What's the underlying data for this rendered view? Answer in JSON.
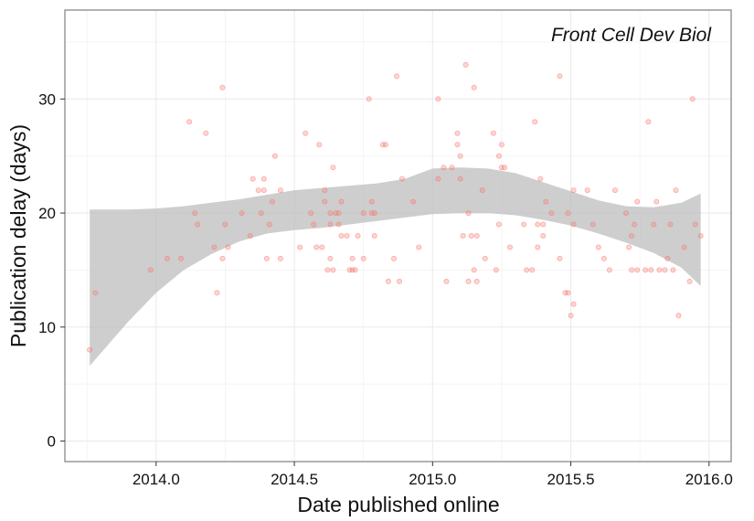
{
  "chart_data": {
    "type": "scatter",
    "title": "",
    "annotation": "Front Cell Dev Biol",
    "xlabel": "Date published online",
    "ylabel": "Publication delay (days)",
    "xlim": [
      2013.67,
      2016.08
    ],
    "ylim": [
      -1.8,
      37.8
    ],
    "x_ticks": [
      2014.0,
      2014.5,
      2015.0,
      2015.5,
      2016.0
    ],
    "x_tick_labels": [
      "2014.0",
      "2014.5",
      "2015.0",
      "2015.5",
      "2016.0"
    ],
    "y_ticks": [
      0,
      10,
      20,
      30
    ],
    "y_tick_labels": [
      "0",
      "10",
      "20",
      "30"
    ],
    "grid": true,
    "point_color": "#f8766d",
    "ribbon_color": "#bdbdbd",
    "points": [
      [
        2013.76,
        8
      ],
      [
        2013.78,
        13
      ],
      [
        2013.98,
        15
      ],
      [
        2014.04,
        16
      ],
      [
        2014.09,
        16
      ],
      [
        2014.12,
        28
      ],
      [
        2014.14,
        20
      ],
      [
        2014.15,
        19
      ],
      [
        2014.18,
        27
      ],
      [
        2014.21,
        17
      ],
      [
        2014.22,
        13
      ],
      [
        2014.24,
        31
      ],
      [
        2014.24,
        16
      ],
      [
        2014.25,
        19
      ],
      [
        2014.26,
        17
      ],
      [
        2014.31,
        20
      ],
      [
        2014.34,
        18
      ],
      [
        2014.35,
        23
      ],
      [
        2014.37,
        22
      ],
      [
        2014.38,
        20
      ],
      [
        2014.39,
        22
      ],
      [
        2014.39,
        23
      ],
      [
        2014.4,
        16
      ],
      [
        2014.41,
        19
      ],
      [
        2014.42,
        21
      ],
      [
        2014.43,
        25
      ],
      [
        2014.45,
        22
      ],
      [
        2014.45,
        16
      ],
      [
        2014.52,
        17
      ],
      [
        2014.54,
        27
      ],
      [
        2014.56,
        20
      ],
      [
        2014.57,
        19
      ],
      [
        2014.58,
        17
      ],
      [
        2014.59,
        26
      ],
      [
        2014.6,
        17
      ],
      [
        2014.61,
        22
      ],
      [
        2014.61,
        21
      ],
      [
        2014.62,
        15
      ],
      [
        2014.63,
        20
      ],
      [
        2014.63,
        16
      ],
      [
        2014.63,
        19
      ],
      [
        2014.64,
        15
      ],
      [
        2014.64,
        24
      ],
      [
        2014.65,
        20
      ],
      [
        2014.66,
        19
      ],
      [
        2014.66,
        20
      ],
      [
        2014.67,
        18
      ],
      [
        2014.67,
        21
      ],
      [
        2014.69,
        18
      ],
      [
        2014.7,
        15
      ],
      [
        2014.71,
        15
      ],
      [
        2014.71,
        16
      ],
      [
        2014.72,
        15
      ],
      [
        2014.73,
        18
      ],
      [
        2014.75,
        20
      ],
      [
        2014.75,
        16
      ],
      [
        2014.77,
        30
      ],
      [
        2014.78,
        20
      ],
      [
        2014.78,
        21
      ],
      [
        2014.79,
        20
      ],
      [
        2014.79,
        18
      ],
      [
        2014.82,
        26
      ],
      [
        2014.83,
        26
      ],
      [
        2014.84,
        14
      ],
      [
        2014.86,
        16
      ],
      [
        2014.87,
        32
      ],
      [
        2014.88,
        14
      ],
      [
        2014.89,
        23
      ],
      [
        2014.93,
        21
      ],
      [
        2014.95,
        17
      ],
      [
        2015.02,
        30
      ],
      [
        2015.02,
        23
      ],
      [
        2015.04,
        24
      ],
      [
        2015.05,
        14
      ],
      [
        2015.07,
        24
      ],
      [
        2015.09,
        26
      ],
      [
        2015.09,
        27
      ],
      [
        2015.1,
        25
      ],
      [
        2015.1,
        23
      ],
      [
        2015.11,
        18
      ],
      [
        2015.12,
        33
      ],
      [
        2015.13,
        14
      ],
      [
        2015.13,
        20
      ],
      [
        2015.14,
        18
      ],
      [
        2015.15,
        31
      ],
      [
        2015.15,
        15
      ],
      [
        2015.16,
        18
      ],
      [
        2015.16,
        14
      ],
      [
        2015.18,
        22
      ],
      [
        2015.19,
        16
      ],
      [
        2015.22,
        27
      ],
      [
        2015.23,
        15
      ],
      [
        2015.24,
        19
      ],
      [
        2015.24,
        25
      ],
      [
        2015.25,
        26
      ],
      [
        2015.25,
        24
      ],
      [
        2015.26,
        24
      ],
      [
        2015.28,
        17
      ],
      [
        2015.33,
        19
      ],
      [
        2015.34,
        15
      ],
      [
        2015.36,
        15
      ],
      [
        2015.37,
        28
      ],
      [
        2015.38,
        19
      ],
      [
        2015.38,
        17
      ],
      [
        2015.39,
        23
      ],
      [
        2015.4,
        19
      ],
      [
        2015.4,
        18
      ],
      [
        2015.41,
        21
      ],
      [
        2015.43,
        20
      ],
      [
        2015.46,
        16
      ],
      [
        2015.46,
        32
      ],
      [
        2015.48,
        13
      ],
      [
        2015.49,
        13
      ],
      [
        2015.49,
        20
      ],
      [
        2015.5,
        11
      ],
      [
        2015.51,
        12
      ],
      [
        2015.51,
        19
      ],
      [
        2015.51,
        22
      ],
      [
        2015.56,
        22
      ],
      [
        2015.58,
        19
      ],
      [
        2015.6,
        17
      ],
      [
        2015.62,
        16
      ],
      [
        2015.64,
        15
      ],
      [
        2015.66,
        22
      ],
      [
        2015.7,
        20
      ],
      [
        2015.71,
        17
      ],
      [
        2015.72,
        15
      ],
      [
        2015.72,
        18
      ],
      [
        2015.73,
        19
      ],
      [
        2015.74,
        15
      ],
      [
        2015.74,
        21
      ],
      [
        2015.77,
        15
      ],
      [
        2015.78,
        28
      ],
      [
        2015.79,
        15
      ],
      [
        2015.8,
        19
      ],
      [
        2015.81,
        21
      ],
      [
        2015.82,
        15
      ],
      [
        2015.84,
        15
      ],
      [
        2015.85,
        16
      ],
      [
        2015.86,
        19
      ],
      [
        2015.87,
        15
      ],
      [
        2015.88,
        22
      ],
      [
        2015.89,
        11
      ],
      [
        2015.91,
        17
      ],
      [
        2015.93,
        14
      ],
      [
        2015.94,
        30
      ],
      [
        2015.95,
        19
      ],
      [
        2015.97,
        18
      ]
    ],
    "confidence_band": {
      "x": [
        2013.76,
        2013.9,
        2014.0,
        2014.1,
        2014.2,
        2014.3,
        2014.4,
        2014.5,
        2014.6,
        2014.7,
        2014.8,
        2014.9,
        2015.0,
        2015.1,
        2015.2,
        2015.3,
        2015.4,
        2015.5,
        2015.6,
        2015.7,
        2015.8,
        2015.9,
        2015.97
      ],
      "lower": [
        6.6,
        10.5,
        13.0,
        15.0,
        16.4,
        17.5,
        18.2,
        18.5,
        18.7,
        19.0,
        19.3,
        19.6,
        19.9,
        20.0,
        20.0,
        19.8,
        19.4,
        18.9,
        18.2,
        17.4,
        16.5,
        15.2,
        13.6
      ],
      "upper": [
        20.3,
        20.3,
        20.4,
        20.6,
        20.9,
        21.2,
        21.6,
        22.0,
        22.2,
        22.4,
        22.6,
        23.0,
        23.9,
        24.0,
        23.9,
        23.5,
        22.7,
        21.9,
        21.1,
        20.6,
        20.5,
        20.9,
        21.7
      ]
    }
  }
}
